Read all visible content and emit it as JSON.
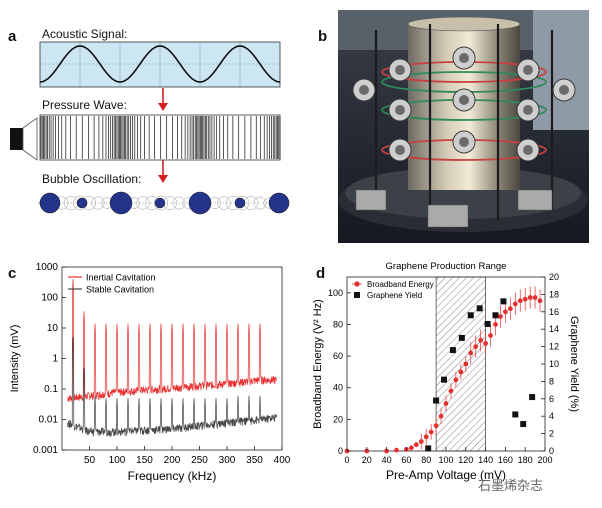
{
  "panels": {
    "a": "a",
    "b": "b",
    "c": "c",
    "d": "d"
  },
  "panel_a": {
    "acoustic_label": "Acoustic Signal:",
    "pressure_label": "Pressure Wave:",
    "bubble_label": "Bubble Oscillation:"
  },
  "watermark": "石墨烯杂志",
  "chart_data": [
    {
      "type": "line",
      "panel": "c",
      "xlabel": "Frequency (kHz)",
      "ylabel": "Intensity (mV)",
      "xlim": [
        0,
        400
      ],
      "ylim": [
        0.001,
        1000
      ],
      "yscale": "log",
      "xticks": [
        50,
        100,
        150,
        200,
        250,
        300,
        350,
        400
      ],
      "yticks": [
        {
          "v": 0.001,
          "t": "0.001"
        },
        {
          "v": 0.01,
          "t": "0.01"
        },
        {
          "v": 0.1,
          "t": "0.1"
        },
        {
          "v": 1,
          "t": "1"
        },
        {
          "v": 10,
          "t": "10"
        },
        {
          "v": 100,
          "t": "100"
        },
        {
          "v": 1000,
          "t": "1000"
        }
      ],
      "legend_position": "top-left",
      "series": [
        {
          "name": "Inertial Cavitation",
          "color": "#e63030",
          "peaks_khz": [
            20,
            40,
            60,
            80,
            100,
            120,
            140,
            160,
            180,
            200,
            220,
            240,
            260,
            280,
            300,
            320,
            340,
            360
          ],
          "peak_values": [
            400,
            35,
            14,
            14,
            14,
            14,
            14,
            14,
            14,
            14,
            14,
            14,
            14,
            14,
            14,
            14,
            14,
            14
          ],
          "baseline": [
            [
              10,
              0.05
            ],
            [
              50,
              0.06
            ],
            [
              100,
              0.08
            ],
            [
              200,
              0.11
            ],
            [
              300,
              0.15
            ],
            [
              360,
              0.2
            ],
            [
              390,
              0.2
            ]
          ]
        },
        {
          "name": "Stable Cavitation",
          "color": "#444444",
          "peaks_khz": [
            20,
            40,
            60,
            80,
            100,
            120,
            140,
            160,
            180,
            200,
            220,
            240,
            260,
            280,
            300,
            320,
            340,
            360
          ],
          "peak_values": [
            5,
            0.5,
            0.06,
            0.05,
            0.05,
            0.05,
            0.05,
            0.05,
            0.05,
            0.05,
            0.05,
            0.05,
            0.05,
            0.05,
            0.05,
            0.06,
            0.06,
            0.06
          ],
          "baseline": [
            [
              10,
              0.008
            ],
            [
              50,
              0.004
            ],
            [
              100,
              0.004
            ],
            [
              200,
              0.005
            ],
            [
              300,
              0.008
            ],
            [
              360,
              0.01
            ],
            [
              390,
              0.012
            ]
          ]
        }
      ]
    },
    {
      "type": "scatter",
      "panel": "d",
      "title": "Graphene Production Range",
      "xlabel": "Pre-Amp Voltage (mV)",
      "ylabel": "Broadband Energy (V² Hz)",
      "y2label": "Graphene Yield (%)",
      "xlim": [
        0,
        200
      ],
      "ylim": [
        0,
        110
      ],
      "y2lim": [
        0,
        20
      ],
      "xticks": [
        0,
        20,
        40,
        60,
        80,
        100,
        120,
        140,
        160,
        180,
        200
      ],
      "yticks": [
        0,
        20,
        40,
        60,
        80,
        100
      ],
      "y2ticks": [
        0,
        2,
        4,
        6,
        8,
        10,
        12,
        14,
        16,
        18,
        20
      ],
      "shaded_range": [
        90,
        140
      ],
      "legend_position": "top-left",
      "series": [
        {
          "name": "Broadband Energy",
          "color": "#e63030",
          "axis": "left",
          "x": [
            0,
            20,
            40,
            50,
            60,
            65,
            70,
            75,
            80,
            85,
            90,
            95,
            100,
            105,
            110,
            115,
            120,
            125,
            130,
            135,
            140,
            145,
            150,
            155,
            160,
            165,
            170,
            175,
            180,
            185,
            190,
            195
          ],
          "y": [
            0,
            0,
            0,
            0.5,
            1,
            2,
            4,
            6,
            9,
            12,
            16,
            22,
            30,
            38,
            45,
            50,
            55,
            62,
            66,
            70,
            68,
            73,
            80,
            85,
            88,
            90,
            93,
            95,
            96,
            97,
            97,
            95
          ]
        },
        {
          "name": "Graphene Yield",
          "color": "#111111",
          "axis": "right",
          "x": [
            82,
            90,
            98,
            107,
            116,
            125,
            134,
            142,
            150,
            158,
            170,
            178,
            187
          ],
          "y": [
            0.3,
            5.8,
            8.2,
            11.6,
            13.0,
            15.6,
            16.4,
            14.6,
            15.6,
            17.2,
            4.2,
            3.1,
            6.2
          ]
        }
      ]
    }
  ]
}
